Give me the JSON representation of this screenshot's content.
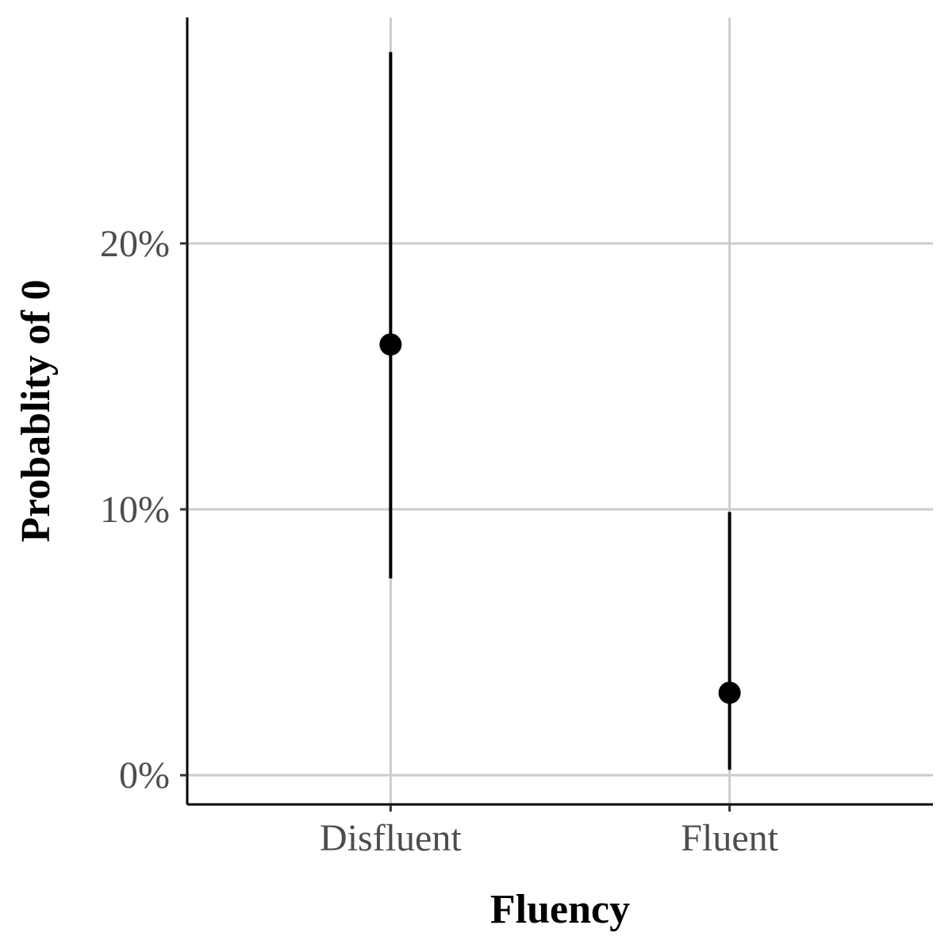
{
  "chart_data": {
    "type": "scatter",
    "title": "",
    "xlabel": "Fluency",
    "ylabel": "Probablity of 0",
    "categories": [
      "Disfluent",
      "Fluent"
    ],
    "y_unit": "percent",
    "ylim": [
      -1.1,
      28.5
    ],
    "yticks": [
      0,
      10,
      20
    ],
    "ytick_labels": [
      "0%",
      "10%",
      "20%"
    ],
    "grid": true,
    "legend": "none",
    "series": [
      {
        "values": [
          16.2,
          3.1
        ],
        "lower": [
          7.4,
          0.2
        ],
        "upper": [
          27.2,
          9.9
        ]
      }
    ]
  }
}
